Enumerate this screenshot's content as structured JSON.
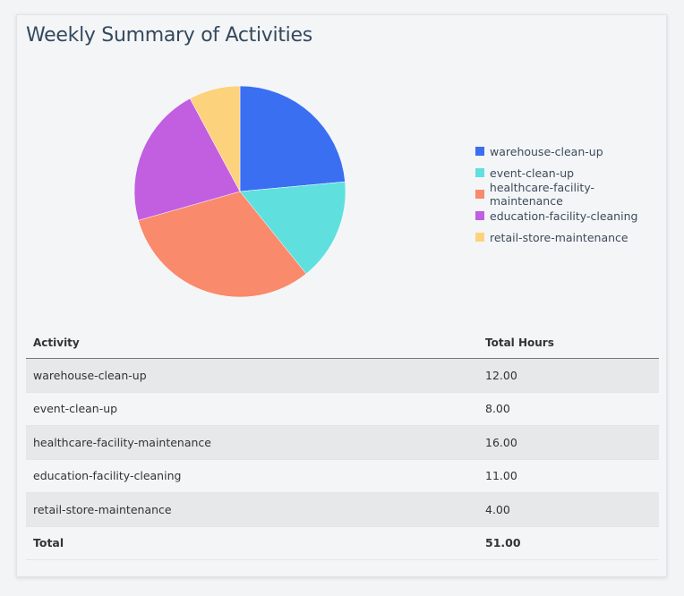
{
  "title": "Weekly Summary of Activities",
  "chart_data": {
    "type": "pie",
    "categories": [
      "warehouse-clean-up",
      "event-clean-up",
      "healthcare-facility-maintenance",
      "education-facility-cleaning",
      "retail-store-maintenance"
    ],
    "values": [
      12,
      8,
      16,
      11,
      4
    ],
    "colors": [
      "#3a6ff2",
      "#5fe0df",
      "#f98a6b",
      "#c15fe0",
      "#fdd27c"
    ],
    "legend_placement": "right"
  },
  "table": {
    "headers": [
      "Activity",
      "Total Hours"
    ],
    "rows": [
      [
        "warehouse-clean-up",
        "12.00"
      ],
      [
        "event-clean-up",
        "8.00"
      ],
      [
        "healthcare-facility-maintenance",
        "16.00"
      ],
      [
        "education-facility-cleaning",
        "11.00"
      ],
      [
        "retail-store-maintenance",
        "4.00"
      ]
    ],
    "total": [
      "Total",
      "51.00"
    ]
  }
}
